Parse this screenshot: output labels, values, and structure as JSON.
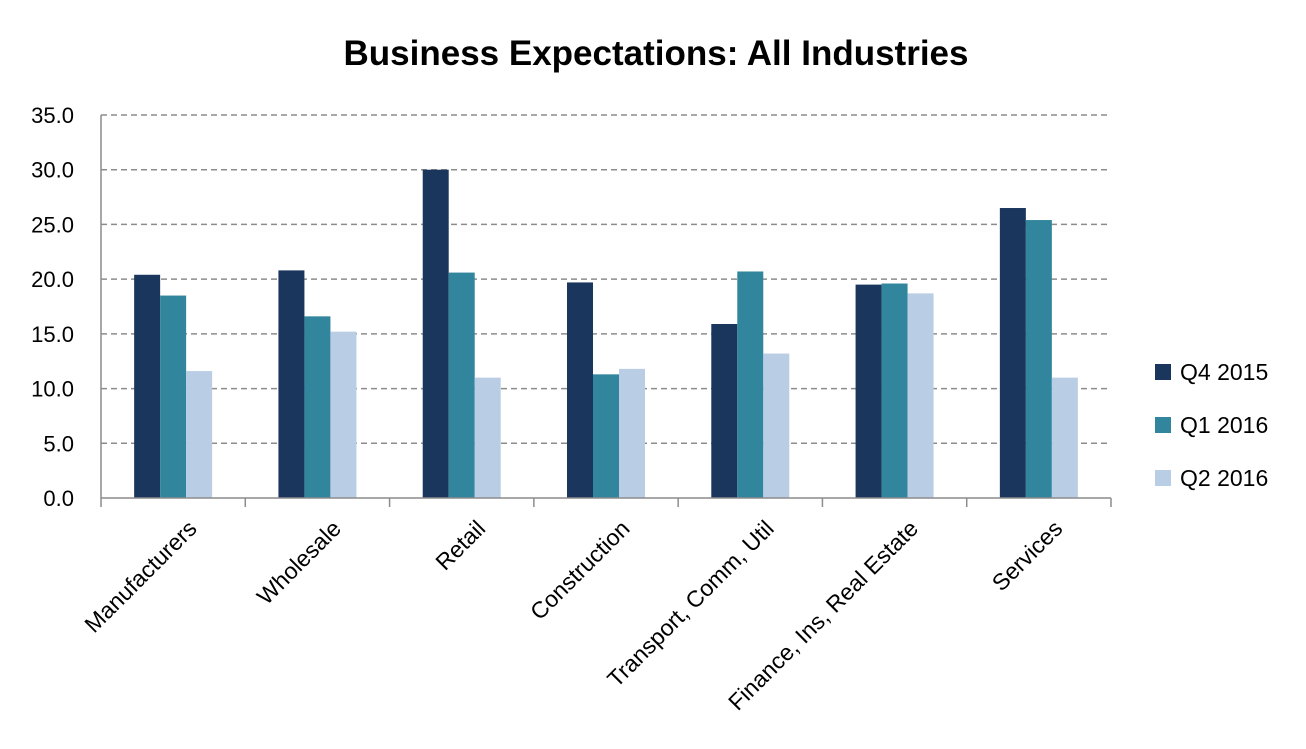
{
  "chart_data": {
    "type": "bar",
    "title": "Business Expectations: All Industries",
    "xlabel": "",
    "ylabel": "",
    "ylim": [
      0,
      35
    ],
    "ytick_step": 5,
    "ytick_labels": [
      "0.0",
      "5.0",
      "10.0",
      "15.0",
      "20.0",
      "25.0",
      "30.0",
      "35.0"
    ],
    "grid": true,
    "legend_position": "right",
    "categories": [
      "Manufacturers",
      "Wholesale",
      "Retail",
      "Construction",
      "Transport, Comm, Util",
      "Finance, Ins, Real Estate",
      "Services"
    ],
    "series": [
      {
        "name": "Q4 2015",
        "color": "#1b365d",
        "values": [
          20.4,
          20.8,
          30.0,
          19.7,
          15.9,
          19.5,
          26.5
        ]
      },
      {
        "name": "Q1 2016",
        "color": "#31859c",
        "values": [
          18.5,
          16.6,
          20.6,
          11.3,
          20.7,
          19.6,
          25.4
        ]
      },
      {
        "name": "Q2 2016",
        "color": "#b9cde5",
        "values": [
          11.6,
          15.2,
          11.0,
          11.8,
          13.2,
          18.7,
          11.0
        ]
      }
    ]
  }
}
